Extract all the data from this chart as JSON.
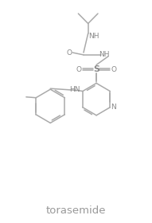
{
  "title": "torasemide",
  "bg_color": "#ffffff",
  "line_color": "#aaaaaa",
  "text_color": "#888888",
  "title_fontsize": 9.5,
  "label_fontsize": 6.5,
  "line_width": 1.1,
  "figsize": [
    1.91,
    2.8
  ],
  "dpi": 100,
  "xlim": [
    0,
    10
  ],
  "ylim": [
    0,
    14.5
  ]
}
